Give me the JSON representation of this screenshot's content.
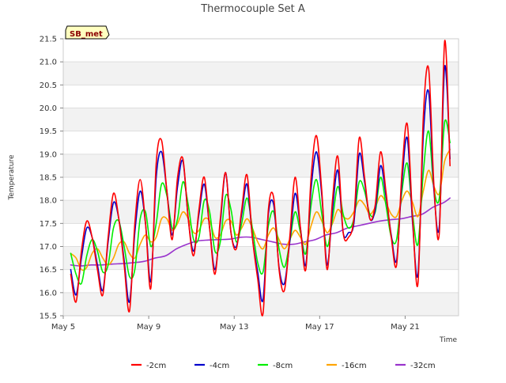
{
  "chart_data": {
    "type": "line",
    "title": "Thermocouple Set A",
    "xlabel": "Time",
    "ylabel": "Temperature",
    "badge": "SB_met",
    "xlim": [
      5.0,
      23.5
    ],
    "ylim": [
      15.5,
      21.5
    ],
    "x_ticks": [
      5,
      9,
      13,
      17,
      21
    ],
    "x_tick_labels": [
      "May 5",
      "May 9",
      "May 13",
      "May 17",
      "May 21"
    ],
    "y_ticks": [
      15.5,
      16.0,
      16.5,
      17.0,
      17.5,
      18.0,
      18.5,
      19.0,
      19.5,
      20.0,
      20.5,
      21.0,
      21.5
    ],
    "y_tick_labels": [
      "15.5",
      "16.0",
      "16.5",
      "17.0",
      "17.5",
      "18.0",
      "18.5",
      "19.0",
      "19.5",
      "20.0",
      "20.5",
      "21.0",
      "21.5"
    ],
    "grid": true,
    "background_bands": "alternating light gray",
    "legend_position": "bottom",
    "series": [
      {
        "name": "-2cm",
        "color": "#ff0000",
        "x": [
          5.35,
          5.6,
          5.85,
          6.1,
          6.35,
          6.6,
          6.85,
          7.1,
          7.35,
          7.6,
          7.85,
          8.1,
          8.35,
          8.6,
          8.85,
          9.1,
          9.35,
          9.6,
          9.85,
          10.1,
          10.35,
          10.6,
          10.85,
          11.1,
          11.35,
          11.6,
          11.85,
          12.1,
          12.35,
          12.6,
          12.85,
          13.1,
          13.35,
          13.6,
          13.85,
          14.1,
          14.35,
          14.6,
          14.85,
          15.1,
          15.35,
          15.6,
          15.85,
          16.1,
          16.35,
          16.6,
          16.85,
          17.1,
          17.35,
          17.6,
          17.85,
          18.1,
          18.35,
          18.6,
          18.85,
          19.1,
          19.35,
          19.6,
          19.85,
          20.1,
          20.35,
          20.6,
          20.85,
          21.1,
          21.35,
          21.6,
          21.85,
          22.1,
          22.35,
          22.6,
          22.85,
          23.1
        ],
        "y": [
          16.4,
          15.8,
          16.9,
          17.55,
          17.2,
          16.5,
          15.95,
          17.2,
          18.15,
          17.6,
          16.6,
          15.6,
          17.5,
          18.45,
          17.5,
          16.1,
          18.8,
          19.3,
          18.2,
          17.15,
          18.5,
          18.9,
          17.6,
          16.8,
          17.8,
          18.5,
          17.4,
          16.4,
          17.6,
          18.6,
          17.3,
          16.95,
          17.8,
          18.55,
          17.2,
          16.3,
          15.55,
          17.8,
          18.05,
          16.5,
          16.05,
          17.2,
          18.5,
          17.4,
          16.5,
          18.5,
          19.4,
          18.2,
          16.5,
          18.0,
          18.95,
          17.3,
          17.2,
          17.6,
          19.35,
          18.5,
          17.6,
          17.9,
          19.05,
          18.2,
          17.2,
          16.6,
          18.6,
          19.65,
          17.6,
          16.2,
          19.8,
          20.85,
          18.3,
          17.3,
          21.45,
          18.75
        ]
      },
      {
        "name": "-4cm",
        "color": "#0000cc",
        "x": [
          5.35,
          5.6,
          5.85,
          6.1,
          6.35,
          6.6,
          6.85,
          7.1,
          7.35,
          7.6,
          7.85,
          8.1,
          8.35,
          8.6,
          8.85,
          9.1,
          9.35,
          9.6,
          9.85,
          10.1,
          10.35,
          10.6,
          10.85,
          11.1,
          11.35,
          11.6,
          11.85,
          12.1,
          12.35,
          12.6,
          12.85,
          13.1,
          13.35,
          13.6,
          13.85,
          14.1,
          14.35,
          14.6,
          14.85,
          15.1,
          15.35,
          15.6,
          15.85,
          16.1,
          16.35,
          16.6,
          16.85,
          17.1,
          17.35,
          17.6,
          17.85,
          18.1,
          18.35,
          18.6,
          18.85,
          19.1,
          19.35,
          19.6,
          19.85,
          20.1,
          20.35,
          20.6,
          20.85,
          21.1,
          21.35,
          21.6,
          21.85,
          22.1,
          22.35,
          22.6,
          22.85,
          23.1
        ],
        "y": [
          16.5,
          15.95,
          16.75,
          17.4,
          17.2,
          16.6,
          16.05,
          17.1,
          17.95,
          17.6,
          16.7,
          15.8,
          17.3,
          18.2,
          17.5,
          16.25,
          18.5,
          19.05,
          18.2,
          17.25,
          18.3,
          18.85,
          17.6,
          16.9,
          17.7,
          18.35,
          17.4,
          16.5,
          17.5,
          18.6,
          17.3,
          17.0,
          17.7,
          18.35,
          17.2,
          16.45,
          15.85,
          17.7,
          17.9,
          16.55,
          16.2,
          17.1,
          18.15,
          17.4,
          16.6,
          18.25,
          19.05,
          18.1,
          16.6,
          17.8,
          18.65,
          17.3,
          17.3,
          17.5,
          19.0,
          18.4,
          17.6,
          17.8,
          18.75,
          18.1,
          17.25,
          16.7,
          18.4,
          19.35,
          17.5,
          16.4,
          19.4,
          20.35,
          18.2,
          17.45,
          20.9,
          18.9
        ]
      },
      {
        "name": "-8cm",
        "color": "#00ee00",
        "x": [
          5.35,
          5.6,
          5.85,
          6.1,
          6.35,
          6.6,
          6.85,
          7.1,
          7.35,
          7.6,
          7.85,
          8.1,
          8.35,
          8.6,
          8.85,
          9.1,
          9.35,
          9.6,
          9.85,
          10.1,
          10.35,
          10.6,
          10.85,
          11.1,
          11.35,
          11.6,
          11.85,
          12.1,
          12.35,
          12.6,
          12.85,
          13.1,
          13.35,
          13.6,
          13.85,
          14.1,
          14.35,
          14.6,
          14.85,
          15.1,
          15.35,
          15.6,
          15.85,
          16.1,
          16.35,
          16.6,
          16.85,
          17.1,
          17.35,
          17.6,
          17.85,
          18.1,
          18.35,
          18.6,
          18.85,
          19.1,
          19.35,
          19.6,
          19.85,
          20.1,
          20.35,
          20.6,
          20.85,
          21.1,
          21.35,
          21.6,
          21.85,
          22.1,
          22.35,
          22.6,
          22.85,
          23.1
        ],
        "y": [
          16.85,
          16.4,
          16.2,
          16.8,
          17.15,
          16.9,
          16.45,
          16.6,
          17.4,
          17.55,
          17.0,
          16.35,
          16.5,
          17.6,
          17.75,
          17.0,
          17.5,
          18.35,
          18.1,
          17.4,
          17.6,
          18.4,
          17.9,
          17.15,
          17.2,
          18.0,
          17.75,
          16.9,
          17.1,
          18.1,
          17.8,
          17.1,
          17.5,
          18.05,
          17.4,
          16.65,
          16.45,
          17.45,
          17.75,
          16.95,
          16.55,
          17.1,
          17.75,
          17.3,
          16.85,
          17.9,
          18.45,
          17.7,
          17.0,
          17.6,
          18.3,
          17.7,
          17.4,
          17.6,
          18.4,
          18.2,
          17.7,
          17.75,
          18.5,
          17.9,
          17.2,
          17.15,
          18.2,
          18.8,
          17.7,
          17.05,
          18.6,
          19.5,
          18.25,
          18.05,
          19.7,
          19.25
        ]
      },
      {
        "name": "-16cm",
        "color": "#ffa500",
        "x": [
          5.35,
          5.6,
          5.85,
          6.1,
          6.35,
          6.6,
          6.85,
          7.1,
          7.35,
          7.6,
          7.85,
          8.1,
          8.35,
          8.6,
          8.85,
          9.1,
          9.35,
          9.6,
          9.85,
          10.1,
          10.35,
          10.6,
          10.85,
          11.1,
          11.35,
          11.6,
          11.85,
          12.1,
          12.35,
          12.6,
          12.85,
          13.1,
          13.35,
          13.6,
          13.85,
          14.1,
          14.35,
          14.6,
          14.85,
          15.1,
          15.35,
          15.6,
          15.85,
          16.1,
          16.35,
          16.6,
          16.85,
          17.1,
          17.35,
          17.6,
          17.85,
          18.1,
          18.35,
          18.6,
          18.85,
          19.1,
          19.35,
          19.6,
          19.85,
          20.1,
          20.35,
          20.6,
          20.85,
          21.1,
          21.35,
          21.6,
          21.85,
          22.1,
          22.35,
          22.6,
          22.85,
          23.1
        ],
        "y": [
          16.85,
          16.75,
          16.5,
          16.55,
          16.85,
          16.95,
          16.75,
          16.6,
          16.75,
          17.05,
          17.1,
          16.85,
          16.75,
          17.05,
          17.25,
          17.1,
          17.2,
          17.6,
          17.6,
          17.35,
          17.5,
          17.75,
          17.6,
          17.3,
          17.35,
          17.6,
          17.55,
          17.2,
          17.25,
          17.55,
          17.55,
          17.25,
          17.4,
          17.6,
          17.4,
          17.1,
          16.95,
          17.25,
          17.4,
          17.15,
          16.95,
          17.15,
          17.35,
          17.2,
          17.05,
          17.45,
          17.75,
          17.55,
          17.3,
          17.5,
          17.8,
          17.65,
          17.6,
          17.75,
          18.0,
          17.9,
          17.7,
          17.85,
          18.1,
          17.95,
          17.7,
          17.65,
          18.0,
          18.2,
          17.95,
          17.65,
          18.2,
          18.65,
          18.3,
          18.15,
          18.85,
          19.1
        ]
      },
      {
        "name": "-32cm",
        "color": "#9933cc",
        "x": [
          5.35,
          5.8,
          6.3,
          6.8,
          7.3,
          7.8,
          8.3,
          8.8,
          9.3,
          9.8,
          10.3,
          10.8,
          11.3,
          11.8,
          12.3,
          12.8,
          13.3,
          13.8,
          14.3,
          14.8,
          15.3,
          15.8,
          16.3,
          16.8,
          17.3,
          17.8,
          18.3,
          18.8,
          19.3,
          19.8,
          20.3,
          20.8,
          21.3,
          21.8,
          22.3,
          22.8,
          23.1
        ],
        "y": [
          16.6,
          16.58,
          16.6,
          16.6,
          16.62,
          16.63,
          16.65,
          16.68,
          16.75,
          16.8,
          16.95,
          17.05,
          17.12,
          17.14,
          17.15,
          17.16,
          17.2,
          17.2,
          17.15,
          17.1,
          17.05,
          17.05,
          17.1,
          17.15,
          17.25,
          17.3,
          17.4,
          17.45,
          17.5,
          17.55,
          17.58,
          17.6,
          17.65,
          17.7,
          17.85,
          17.95,
          18.05
        ]
      }
    ]
  }
}
